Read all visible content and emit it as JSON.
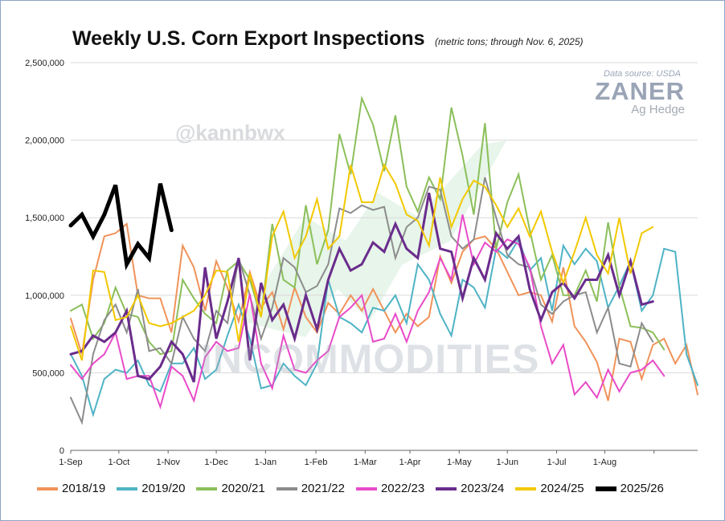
{
  "title": "Weekly U.S. Corn Export Inspections",
  "subtitle": "(metric tons; through Nov. 6, 2025)",
  "source": "Data source: USDA",
  "brand": {
    "name": "ZANER",
    "sub": "Ag Hedge"
  },
  "watermarks": {
    "handle": "@kannbwx",
    "company": "INCOMMODITIES"
  },
  "chart_data": {
    "type": "line",
    "y_ticks": [
      0,
      500000,
      1000000,
      1500000,
      2000000,
      2500000
    ],
    "y_tick_labels": [
      "0",
      "500,000",
      "1,000,000",
      "1,500,000",
      "2,000,000",
      "2,500,000"
    ],
    "ylim": [
      0,
      2500000
    ],
    "x_ticks": [
      0,
      4.3,
      8.7,
      13,
      17.4,
      21.9,
      26.3,
      30.3,
      34.7,
      39,
      43.4,
      47.7,
      52.1
    ],
    "x_tick_labels": [
      "1-Sep",
      "1-Oct",
      "1-Nov",
      "1-Dec",
      "1-Jan",
      "1-Feb",
      "1-Mar",
      "1-Apr",
      "1-May",
      "1-Jun",
      "1-Jul",
      "1-Aug",
      ""
    ],
    "xlim": [
      0,
      56
    ],
    "grid": true,
    "legend": "bottom",
    "series": [
      {
        "name": "2018/19",
        "color": "#f0935a",
        "width": 2,
        "values": [
          850000,
          620000,
          1100000,
          1380000,
          1400000,
          1460000,
          1000000,
          980000,
          980000,
          760000,
          1320000,
          1180000,
          900000,
          1220000,
          1050000,
          830000,
          1150000,
          920000,
          1020000,
          780000,
          1050000,
          860000,
          760000,
          950000,
          880000,
          1000000,
          900000,
          1040000,
          900000,
          760000,
          880000,
          800000,
          860000,
          1250000,
          1080000,
          1280000,
          1360000,
          1380000,
          1300000,
          1150000,
          1000000,
          1020000,
          1000000,
          830000,
          1180000,
          800000,
          700000,
          570000,
          320000,
          720000,
          700000,
          460000,
          680000,
          720000,
          560000,
          680000,
          360000
        ]
      },
      {
        "name": "2019/20",
        "color": "#4eb3c5",
        "width": 2,
        "values": [
          620000,
          480000,
          230000,
          460000,
          520000,
          500000,
          580000,
          420000,
          380000,
          560000,
          560000,
          660000,
          460000,
          520000,
          740000,
          940000,
          720000,
          400000,
          420000,
          560000,
          480000,
          420000,
          560000,
          1100000,
          860000,
          820000,
          760000,
          920000,
          900000,
          1000000,
          820000,
          1200000,
          1100000,
          880000,
          740000,
          1100000,
          1050000,
          920000,
          1300000,
          1240000,
          1360000,
          1160000,
          1240000,
          900000,
          1320000,
          1200000,
          1300000,
          1220000,
          920000,
          1060000,
          1220000,
          900000,
          1000000,
          1300000,
          1280000,
          620000,
          420000
        ]
      },
      {
        "name": "2020/21",
        "color": "#8bbf5a",
        "width": 2,
        "values": [
          900000,
          940000,
          720000,
          820000,
          1050000,
          880000,
          860000,
          700000,
          620000,
          640000,
          1100000,
          980000,
          880000,
          820000,
          1160000,
          1220000,
          1100000,
          860000,
          1460000,
          1100000,
          1050000,
          1580000,
          1200000,
          1420000,
          2040000,
          1780000,
          2270000,
          2100000,
          1800000,
          2160000,
          1700000,
          1540000,
          1760000,
          1620000,
          2210000,
          1900000,
          1520000,
          2110000,
          1300000,
          1600000,
          1780000,
          1420000,
          1100000,
          1260000,
          1000000,
          1000000,
          1160000,
          960000,
          1470000,
          1060000,
          800000,
          790000,
          760000,
          650000
        ]
      },
      {
        "name": "2021/22",
        "color": "#8c8c8c",
        "width": 2,
        "values": [
          340000,
          180000,
          620000,
          840000,
          940000,
          760000,
          1040000,
          640000,
          660000,
          560000,
          860000,
          720000,
          640000,
          900000,
          820000,
          1240000,
          1000000,
          720000,
          920000,
          1240000,
          1180000,
          1020000,
          1060000,
          1200000,
          1560000,
          1530000,
          1580000,
          1550000,
          1570000,
          1240000,
          1440000,
          1500000,
          1700000,
          1680000,
          1380000,
          1300000,
          1360000,
          1760000,
          1500000,
          1260000,
          1200000,
          1180000,
          940000,
          880000,
          960000,
          1000000,
          1020000,
          760000,
          920000,
          560000,
          540000,
          820000,
          700000
        ]
      },
      {
        "name": "2022/23",
        "color": "#e84bc8",
        "width": 2,
        "values": [
          550000,
          460000,
          560000,
          620000,
          760000,
          460000,
          480000,
          480000,
          280000,
          540000,
          480000,
          320000,
          600000,
          700000,
          640000,
          660000,
          1010000,
          560000,
          400000,
          740000,
          520000,
          500000,
          580000,
          640000,
          860000,
          920000,
          1000000,
          700000,
          720000,
          880000,
          700000,
          900000,
          1020000,
          1240000,
          1100000,
          1520000,
          1200000,
          1340000,
          1280000,
          1360000,
          1330000,
          1180000,
          800000,
          560000,
          680000,
          360000,
          440000,
          340000,
          520000,
          380000,
          500000,
          520000,
          580000,
          480000
        ]
      },
      {
        "name": "2023/24",
        "color": "#6a2c8c",
        "width": 3,
        "values": [
          620000,
          640000,
          740000,
          700000,
          760000,
          900000,
          480000,
          460000,
          540000,
          700000,
          620000,
          440000,
          1180000,
          720000,
          960000,
          1240000,
          580000,
          1080000,
          840000,
          940000,
          720000,
          1000000,
          780000,
          1100000,
          1300000,
          1160000,
          1200000,
          1340000,
          1280000,
          1460000,
          1300000,
          1240000,
          1660000,
          1300000,
          1280000,
          980000,
          1240000,
          1100000,
          1400000,
          1300000,
          1380000,
          1040000,
          840000,
          1020000,
          1080000,
          980000,
          1100000,
          1100000,
          1260000,
          1000000,
          1220000,
          940000,
          960000
        ]
      },
      {
        "name": "2024/25",
        "color": "#f2c800",
        "width": 2,
        "values": [
          800000,
          580000,
          1160000,
          1150000,
          840000,
          860000,
          1000000,
          820000,
          800000,
          820000,
          860000,
          900000,
          1000000,
          1160000,
          1150000,
          700000,
          1140000,
          860000,
          1380000,
          1540000,
          1240000,
          1380000,
          1620000,
          1300000,
          1380000,
          1840000,
          1600000,
          1600000,
          1840000,
          1720000,
          1520000,
          1480000,
          1320000,
          1760000,
          1440000,
          1620000,
          1740000,
          1700000,
          1580000,
          1440000,
          1560000,
          1380000,
          1540000,
          1280000,
          1080000,
          1280000,
          1500000,
          1260000,
          1140000,
          1500000,
          1140000,
          1400000,
          1440000
        ]
      },
      {
        "name": "2025/26",
        "color": "#000000",
        "width": 5,
        "values": [
          1450000,
          1520000,
          1380000,
          1520000,
          1710000,
          1200000,
          1330000,
          1240000,
          1720000,
          1420000
        ]
      }
    ]
  }
}
